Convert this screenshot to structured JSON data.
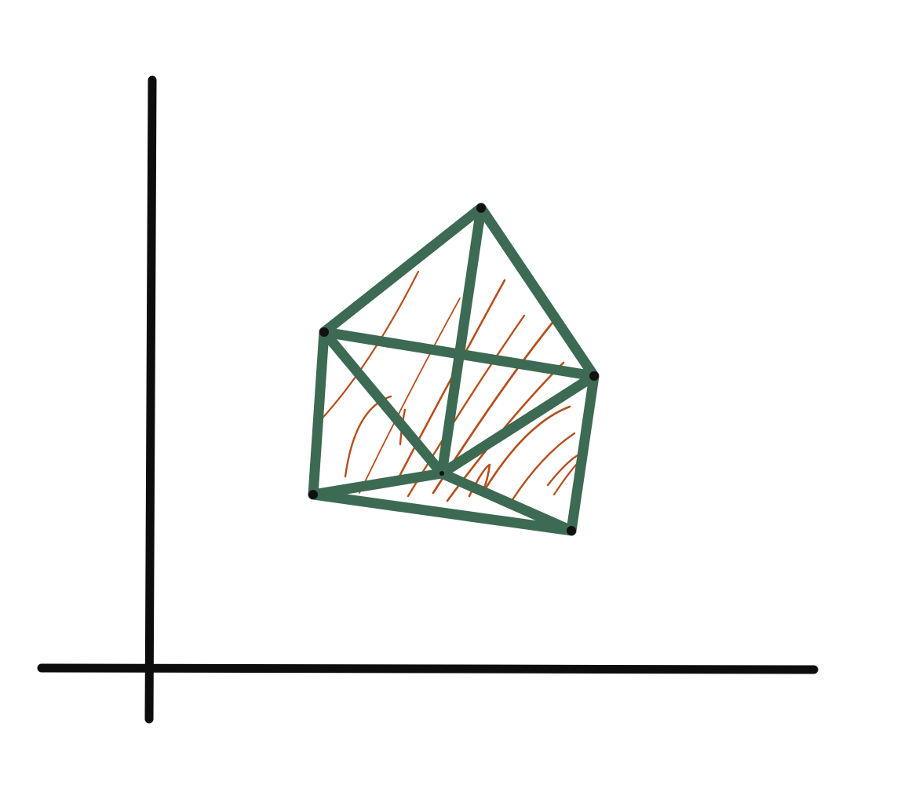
{
  "colors": {
    "background": "#ffffff",
    "axes": "#0d0d0d",
    "edges": "#3d6a52",
    "shading": "#b5501e",
    "vertices": "#111111"
  },
  "diagram": {
    "kind": "hand-drawn sketch of a 3D solid (polyhedron) above a pair of coordinate axes",
    "axes": [
      "vertical-axis",
      "horizontal-axis"
    ],
    "solid": {
      "vertices": [
        "apex",
        "left-top",
        "right",
        "left-bottom",
        "bottom-right",
        "center"
      ],
      "edges": [
        [
          "apex",
          "left-top"
        ],
        [
          "apex",
          "right"
        ],
        [
          "apex",
          "center"
        ],
        [
          "left-top",
          "right"
        ],
        [
          "left-top",
          "left-bottom"
        ],
        [
          "left-top",
          "center"
        ],
        [
          "right",
          "bottom-right"
        ],
        [
          "right",
          "center"
        ],
        [
          "left-bottom",
          "center"
        ],
        [
          "left-bottom",
          "bottom-right"
        ],
        [
          "center",
          "bottom-right"
        ]
      ],
      "shaded": true
    }
  }
}
